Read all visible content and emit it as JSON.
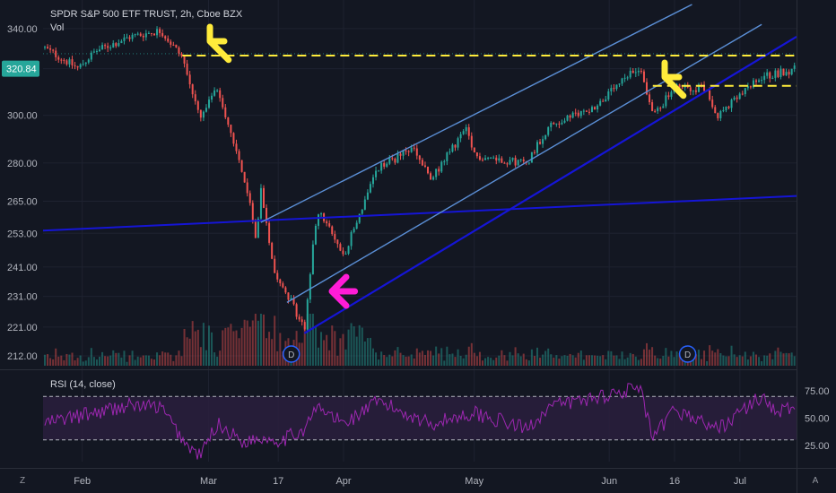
{
  "header": {
    "symbol_line": "SPDR S&P 500 ETF TRUST, 2h, Cboe BZX",
    "sub_line": "Vol"
  },
  "current_price_label": "320.84",
  "colors": {
    "background": "#131722",
    "up_candle": "#26a69a",
    "down_candle": "#ef5350",
    "channel_line": "#5b8fd6",
    "support_line": "#1515d6",
    "yellow_level": "#ffeb3b",
    "price_tag": "#26a69a",
    "rsi_line": "#9c27b0",
    "rsi_band": "#2a1f3d",
    "arrow_yellow": "#ffeb3b",
    "arrow_magenta": "#ff1cd6"
  },
  "corner_icons": {
    "left": "Z",
    "right": "A"
  },
  "dividend_marker": "D",
  "chart_data": [
    {
      "type": "candlestick",
      "title": "SPDR S&P 500 ETF TRUST, 2h, Cboe BZX",
      "y_ticks": [
        "340.00",
        "320.84",
        "300.00",
        "280.00",
        "265.00",
        "253.00",
        "241.00",
        "231.00",
        "221.00",
        "212.00"
      ],
      "y_scale": "log",
      "ylim": [
        209,
        352
      ],
      "x_ticks": [
        "Feb",
        "Mar",
        "17",
        "Apr",
        "May",
        "Jun",
        "16",
        "Jul"
      ],
      "price_path": [
        {
          "t": "Jan 23",
          "close": 331
        },
        {
          "t": "Jan 31",
          "close": 321
        },
        {
          "t": "Feb 4",
          "close": 329
        },
        {
          "t": "Feb 12",
          "close": 336
        },
        {
          "t": "Feb 19",
          "close": 339
        },
        {
          "t": "Feb 24",
          "close": 326
        },
        {
          "t": "Feb 28",
          "close": 298
        },
        {
          "t": "Mar 3",
          "close": 312
        },
        {
          "t": "Mar 9",
          "close": 275
        },
        {
          "t": "Mar 12",
          "close": 251
        },
        {
          "t": "Mar 13",
          "close": 270
        },
        {
          "t": "Mar 16",
          "close": 240
        },
        {
          "t": "Mar 18",
          "close": 235
        },
        {
          "t": "Mar 23",
          "close": 220
        },
        {
          "t": "Mar 26",
          "close": 262
        },
        {
          "t": "Apr 1",
          "close": 245
        },
        {
          "t": "Apr 9",
          "close": 278
        },
        {
          "t": "Apr 17",
          "close": 286
        },
        {
          "t": "Apr 21",
          "close": 273
        },
        {
          "t": "Apr 29",
          "close": 294
        },
        {
          "t": "May 1",
          "close": 283
        },
        {
          "t": "May 13",
          "close": 280
        },
        {
          "t": "May 18",
          "close": 295
        },
        {
          "t": "May 29",
          "close": 304
        },
        {
          "t": "Jun 8",
          "close": 322
        },
        {
          "t": "Jun 11",
          "close": 300
        },
        {
          "t": "Jun 16",
          "close": 312
        },
        {
          "t": "Jun 23",
          "close": 312
        },
        {
          "t": "Jun 26",
          "close": 300
        },
        {
          "t": "Jul 6",
          "close": 317
        },
        {
          "t": "Jul 14",
          "close": 320.84
        }
      ],
      "horizontal_levels": [
        {
          "value": 327,
          "style": "dashed",
          "color": "yellow"
        },
        {
          "value": 313,
          "style": "dashed",
          "color": "yellow"
        }
      ],
      "trend_lines": [
        {
          "name": "support",
          "from": {
            "t": "Jan 23",
            "price": 254
          },
          "to": {
            "t": "Jul 14",
            "price": 267
          }
        },
        {
          "name": "channel-upper",
          "from": {
            "t": "Mar 13",
            "price": 257
          },
          "to": {
            "t": "Jun 20",
            "price": 352
          }
        },
        {
          "name": "channel-lower",
          "from": {
            "t": "Mar 19",
            "price": 229
          },
          "to": {
            "t": "Jul 6",
            "price": 342
          }
        },
        {
          "name": "uptrend",
          "from": {
            "t": "Mar 23",
            "price": 219
          },
          "to": {
            "t": "Jul 14",
            "price": 336
          }
        }
      ],
      "annotations": [
        {
          "kind": "arrow",
          "color": "yellow",
          "near": "Feb 24 top"
        },
        {
          "kind": "arrow",
          "color": "yellow",
          "near": "Jun 14"
        },
        {
          "kind": "arrow",
          "color": "magenta",
          "near": "Mar 20 low"
        }
      ]
    },
    {
      "type": "line",
      "title": "RSI (14, close)",
      "y_ticks": [
        "75.00",
        "50.00",
        "25.00"
      ],
      "ylim": [
        10,
        90
      ],
      "bands": [
        70,
        30
      ],
      "rsi_path": [
        {
          "t": "Jan 23",
          "value": 45
        },
        {
          "t": "Feb 4",
          "value": 55
        },
        {
          "t": "Feb 12",
          "value": 62
        },
        {
          "t": "Feb 19",
          "value": 60
        },
        {
          "t": "Feb 25",
          "value": 25
        },
        {
          "t": "Feb 28",
          "value": 15
        },
        {
          "t": "Mar 3",
          "value": 45
        },
        {
          "t": "Mar 9",
          "value": 28
        },
        {
          "t": "Mar 13",
          "value": 32
        },
        {
          "t": "Mar 18",
          "value": 30
        },
        {
          "t": "Mar 23",
          "value": 40
        },
        {
          "t": "Mar 26",
          "value": 60
        },
        {
          "t": "Apr 1",
          "value": 45
        },
        {
          "t": "Apr 9",
          "value": 65
        },
        {
          "t": "Apr 21",
          "value": 45
        },
        {
          "t": "May 1",
          "value": 55
        },
        {
          "t": "May 13",
          "value": 40
        },
        {
          "t": "May 18",
          "value": 60
        },
        {
          "t": "Jun 1",
          "value": 72
        },
        {
          "t": "Jun 8",
          "value": 78
        },
        {
          "t": "Jun 11",
          "value": 30
        },
        {
          "t": "Jun 16",
          "value": 58
        },
        {
          "t": "Jun 26",
          "value": 40
        },
        {
          "t": "Jul 6",
          "value": 70
        },
        {
          "t": "Jul 10",
          "value": 55
        },
        {
          "t": "Jul 14",
          "value": 62
        }
      ]
    }
  ]
}
